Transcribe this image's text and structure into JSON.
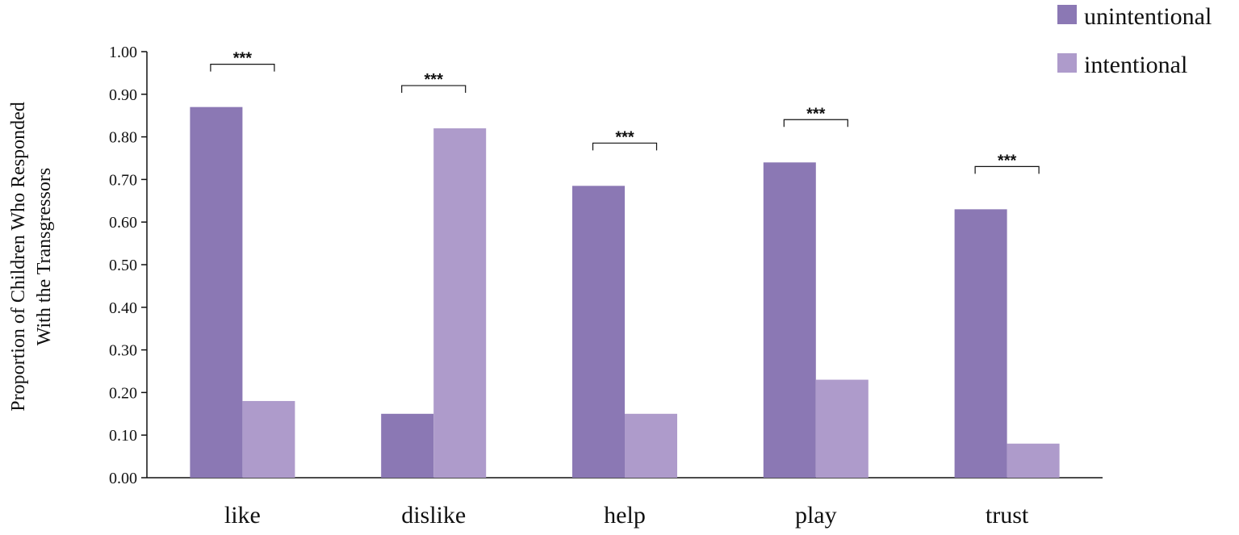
{
  "chart_data": {
    "type": "bar",
    "categories": [
      "like",
      "dislike",
      "help",
      "play",
      "trust"
    ],
    "series": [
      {
        "name": "unintentional",
        "color": "#8b78b4",
        "values": [
          0.87,
          0.15,
          0.685,
          0.74,
          0.63
        ]
      },
      {
        "name": "intentional",
        "color": "#ae9bcb",
        "values": [
          0.18,
          0.82,
          0.15,
          0.23,
          0.08
        ]
      }
    ],
    "ylabel_lines": [
      "Proportion of Children  Who Responded",
      "With the Transgressors"
    ],
    "ylim": [
      0,
      1.0
    ],
    "yticks": [
      "0.00",
      "0.10",
      "0.20",
      "0.30",
      "0.40",
      "0.50",
      "0.60",
      "0.70",
      "0.80",
      "0.90",
      "1.00"
    ],
    "significance": [
      "***",
      "***",
      "***",
      "***",
      "***"
    ],
    "legend": "top-right",
    "grid": false
  }
}
